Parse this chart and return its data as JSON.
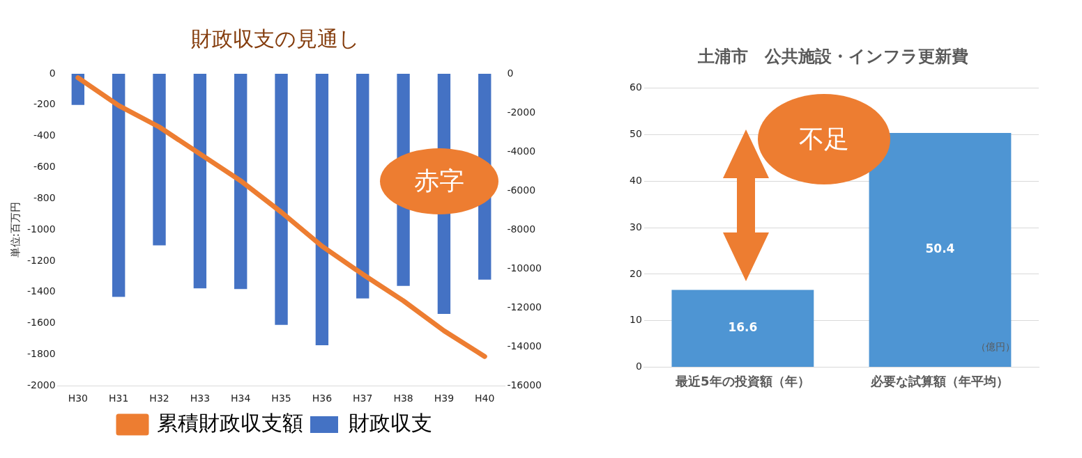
{
  "chart_data": [
    {
      "type": "bar",
      "title": "財政収支の見通し",
      "ylabel": "単位:百万円",
      "categories": [
        "H30",
        "H31",
        "H32",
        "H33",
        "H34",
        "H35",
        "H36",
        "H37",
        "H38",
        "H39",
        "H40"
      ],
      "series": [
        {
          "name": "財政収支",
          "color": "#4472c4",
          "values": [
            -200,
            -1430,
            -1100,
            -1375,
            -1380,
            -1610,
            -1740,
            -1440,
            -1360,
            -1540,
            -1320
          ]
        },
        {
          "name": "累積財政収支額",
          "type": "line",
          "axis": "y2",
          "color": "#ed7d31",
          "values": [
            -200,
            -1630,
            -2730,
            -4110,
            -5490,
            -7100,
            -8840,
            -10280,
            -11640,
            -13180,
            -14500
          ]
        }
      ],
      "ylim": [
        -2000,
        0
      ],
      "yticks": [
        0,
        -200,
        -400,
        -600,
        -800,
        -1000,
        -1200,
        -1400,
        -1600,
        -1800,
        -2000
      ],
      "y2lim": [
        -16000,
        0
      ],
      "y2ticks": [
        0,
        -2000,
        -4000,
        -6000,
        -8000,
        -10000,
        -12000,
        -14000,
        -16000
      ],
      "grid": false,
      "legend": "bottom",
      "marker": "none",
      "annotations": [
        "赤字"
      ]
    },
    {
      "type": "bar",
      "title": "土浦市　公共施設・インフラ更新費",
      "categories": [
        "最近5年の投資額（年）",
        "必要な試算額（年平均）"
      ],
      "values": [
        16.6,
        50.4
      ],
      "color": "#4e95d3",
      "ylim": [
        0,
        60
      ],
      "yticks": [
        0,
        10,
        20,
        30,
        40,
        50,
        60
      ],
      "grid": "y",
      "data_labels": true,
      "annotations": [
        "不足",
        "（億円）"
      ]
    }
  ]
}
